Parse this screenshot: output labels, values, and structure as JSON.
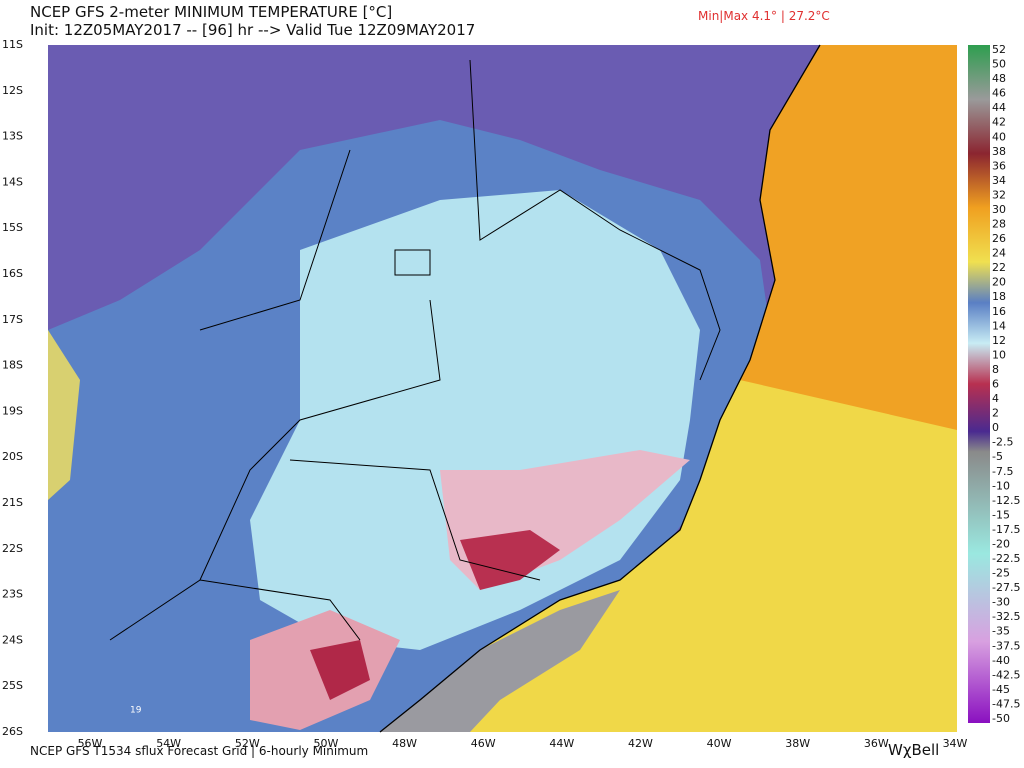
{
  "header": {
    "title": "NCEP GFS 2-meter MINIMUM TEMPERATURE [°C]",
    "subtitle": "Init: 12Z05MAY2017 -- [96] hr --> Valid Tue 12Z09MAY2017",
    "min_max": "Min|Max 4.1° | 27.2°C"
  },
  "map": {
    "latitude_labels": [
      "11S",
      "12S",
      "13S",
      "14S",
      "15S",
      "16S",
      "17S",
      "18S",
      "19S",
      "20S",
      "21S",
      "22S",
      "23S",
      "24S",
      "25S",
      "26S"
    ],
    "longitude_labels": [
      "56W",
      "54W",
      "52W",
      "50W",
      "48W",
      "46W",
      "44W",
      "42W",
      "40W",
      "38W",
      "36W",
      "34W"
    ],
    "place_label": "19"
  },
  "colorbar": {
    "labels": [
      "52",
      "50",
      "48",
      "46",
      "44",
      "42",
      "40",
      "38",
      "36",
      "34",
      "32",
      "30",
      "28",
      "26",
      "24",
      "22",
      "20",
      "18",
      "16",
      "14",
      "12",
      "10",
      "8",
      "6",
      "4",
      "2",
      "0",
      "-2.5",
      "-5",
      "-7.5",
      "-10",
      "-12.5",
      "-15",
      "-17.5",
      "-20",
      "-22.5",
      "-25",
      "-27.5",
      "-30",
      "-32.5",
      "-35",
      "-37.5",
      "-40",
      "-42.5",
      "-45",
      "-47.5",
      "-50"
    ]
  },
  "footer": {
    "source": "NCEP GFS T1534 sflux Forecast Grid | 6-hourly Minimum",
    "brand": "WχBell"
  }
}
